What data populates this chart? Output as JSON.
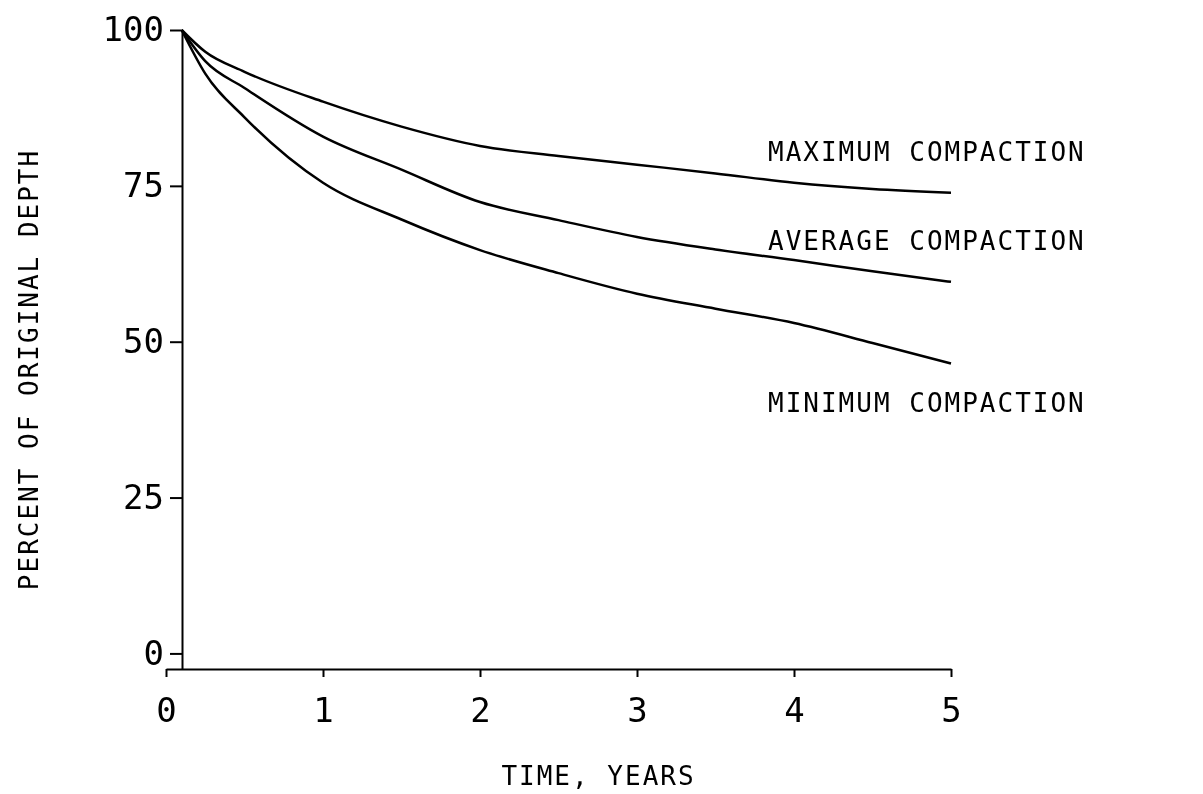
{
  "chart_data": {
    "type": "line",
    "xlabel": "TIME, YEARS",
    "ylabel": "PERCENT OF ORIGINAL DEPTH",
    "x": [
      0.1,
      0.25,
      0.5,
      1,
      1.5,
      2,
      2.5,
      3,
      3.5,
      4,
      4.5,
      5
    ],
    "xlim": [
      0,
      5
    ],
    "xticks": [
      0,
      1,
      2,
      3,
      4,
      5
    ],
    "ylim": [
      -2.5,
      100
    ],
    "yticks": [
      0,
      25,
      50,
      75,
      100
    ],
    "grid": false,
    "legend": false,
    "marker": "none",
    "line_style": "solid",
    "series": [
      {
        "name": "MAXIMUM COMPACTION",
        "color": "#000000",
        "values": [
          100,
          96.5,
          93.3,
          88.5,
          84.5,
          81.4,
          79.8,
          78.4,
          77,
          75.5,
          74.5,
          73.9
        ]
      },
      {
        "name": "AVERAGE COMPACTION",
        "color": "#000000",
        "values": [
          100,
          95,
          90.7,
          82.9,
          77.6,
          72.4,
          69.5,
          66.8,
          64.8,
          63.1,
          61.3,
          59.6
        ]
      },
      {
        "name": "MINIMUM COMPACTION",
        "color": "#000000",
        "values": [
          100,
          93,
          86,
          75.5,
          69.6,
          64.7,
          61,
          57.7,
          55.3,
          53,
          49.8,
          46.5
        ]
      }
    ]
  }
}
